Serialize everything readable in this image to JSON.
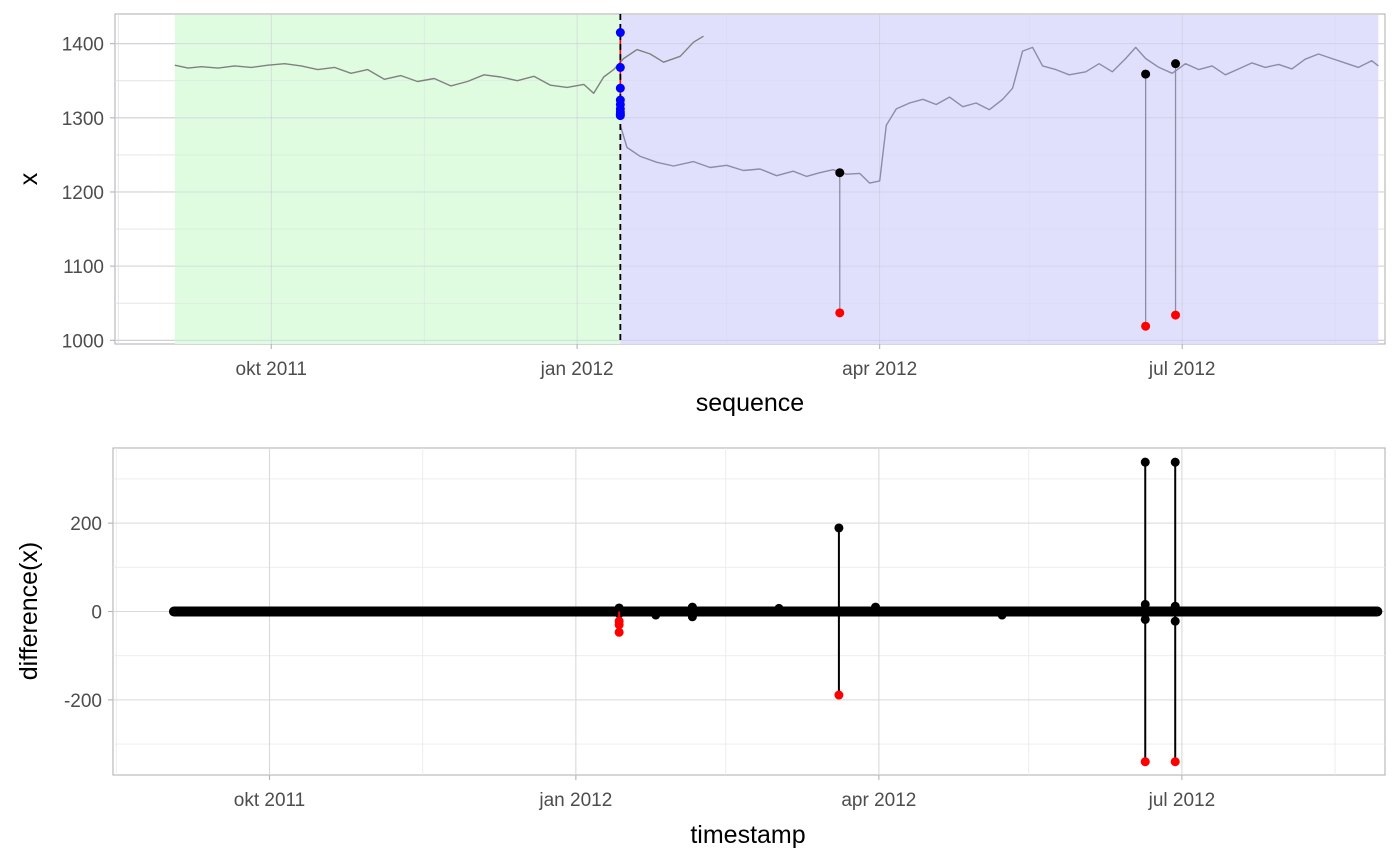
{
  "chart_data": [
    {
      "type": "line",
      "xlabel": "sequence",
      "ylabel": "x",
      "xlim": [
        "2011-08-15",
        "2012-08-31"
      ],
      "ylim": [
        995,
        1440
      ],
      "x_ticks": [
        {
          "label": "okt 2011",
          "date": "2011-10-01"
        },
        {
          "label": "jan 2012",
          "date": "2012-01-01"
        },
        {
          "label": "apr 2012",
          "date": "2012-04-01"
        },
        {
          "label": "jul 2012",
          "date": "2012-07-01"
        }
      ],
      "x_minor_ticks": [
        "2011-08-16",
        "2011-11-16",
        "2012-02-15",
        "2012-05-16",
        "2012-08-16"
      ],
      "y_ticks": [
        1000,
        1100,
        1200,
        1300,
        1400
      ],
      "y_minor_ticks": [
        1050,
        1150,
        1250,
        1350
      ],
      "grid": true,
      "regions": [
        {
          "start": "2011-09-02",
          "end": "2012-01-14",
          "color": "#e0fce0"
        },
        {
          "start": "2012-01-14",
          "end": "2012-08-29",
          "color": "#e0e0fc"
        }
      ],
      "changepoint": {
        "date": "2012-01-14",
        "color": "#000000",
        "style": "dashed"
      },
      "series": [
        {
          "color": "#808080",
          "points": [
            [
              "2011-09-02",
              1371
            ],
            [
              "2011-09-06",
              1367
            ],
            [
              "2011-09-10",
              1369
            ],
            [
              "2011-09-15",
              1367
            ],
            [
              "2011-09-20",
              1370
            ],
            [
              "2011-09-25",
              1368
            ],
            [
              "2011-09-30",
              1371
            ],
            [
              "2011-10-05",
              1373
            ],
            [
              "2011-10-10",
              1370
            ],
            [
              "2011-10-15",
              1365
            ],
            [
              "2011-10-20",
              1368
            ],
            [
              "2011-10-25",
              1360
            ],
            [
              "2011-10-30",
              1365
            ],
            [
              "2011-11-04",
              1352
            ],
            [
              "2011-11-09",
              1357
            ],
            [
              "2011-11-14",
              1349
            ],
            [
              "2011-11-19",
              1353
            ],
            [
              "2011-11-24",
              1343
            ],
            [
              "2011-11-29",
              1349
            ],
            [
              "2011-12-04",
              1358
            ],
            [
              "2011-12-09",
              1355
            ],
            [
              "2011-12-14",
              1350
            ],
            [
              "2011-12-19",
              1356
            ],
            [
              "2011-12-24",
              1344
            ],
            [
              "2011-12-29",
              1341
            ],
            [
              "2012-01-03",
              1345
            ],
            [
              "2012-01-06",
              1333
            ],
            [
              "2012-01-09",
              1355
            ],
            [
              "2012-01-12",
              1365
            ],
            [
              "2012-01-15",
              1380
            ],
            [
              "2012-01-19",
              1392
            ],
            [
              "2012-01-23",
              1386
            ],
            [
              "2012-01-27",
              1375
            ],
            [
              "2012-02-01",
              1383
            ],
            [
              "2012-02-05",
              1402
            ],
            [
              "2012-02-08",
              1410
            ]
          ]
        },
        {
          "color": "#8c8ca6",
          "points": [
            [
              "2012-01-14",
              1290
            ],
            [
              "2012-01-16",
              1260
            ],
            [
              "2012-01-20",
              1248
            ],
            [
              "2012-01-25",
              1240
            ],
            [
              "2012-01-30",
              1235
            ],
            [
              "2012-02-05",
              1241
            ],
            [
              "2012-02-10",
              1233
            ],
            [
              "2012-02-15",
              1236
            ],
            [
              "2012-02-20",
              1229
            ],
            [
              "2012-02-25",
              1231
            ],
            [
              "2012-03-01",
              1222
            ],
            [
              "2012-03-06",
              1228
            ],
            [
              "2012-03-10",
              1221
            ],
            [
              "2012-03-14",
              1226
            ],
            [
              "2012-03-18",
              1230
            ],
            [
              "2012-03-22",
              1224
            ],
            [
              "2012-03-26",
              1225
            ],
            [
              "2012-03-29",
              1212
            ],
            [
              "2012-04-01",
              1215
            ],
            [
              "2012-04-03",
              1290
            ],
            [
              "2012-04-06",
              1312
            ],
            [
              "2012-04-10",
              1320
            ],
            [
              "2012-04-14",
              1325
            ],
            [
              "2012-04-18",
              1318
            ],
            [
              "2012-04-22",
              1328
            ],
            [
              "2012-04-26",
              1315
            ],
            [
              "2012-04-30",
              1320
            ],
            [
              "2012-05-04",
              1311
            ],
            [
              "2012-05-08",
              1325
            ],
            [
              "2012-05-11",
              1340
            ],
            [
              "2012-05-14",
              1390
            ],
            [
              "2012-05-17",
              1395
            ],
            [
              "2012-05-20",
              1370
            ],
            [
              "2012-05-24",
              1365
            ],
            [
              "2012-05-28",
              1358
            ],
            [
              "2012-06-02",
              1362
            ],
            [
              "2012-06-06",
              1373
            ],
            [
              "2012-06-10",
              1362
            ],
            [
              "2012-06-14",
              1380
            ],
            [
              "2012-06-17",
              1395
            ],
            [
              "2012-06-20",
              1380
            ],
            [
              "2012-06-24",
              1368
            ],
            [
              "2012-06-28",
              1360
            ],
            [
              "2012-07-02",
              1373
            ],
            [
              "2012-07-06",
              1365
            ],
            [
              "2012-07-10",
              1370
            ],
            [
              "2012-07-14",
              1358
            ],
            [
              "2012-07-18",
              1366
            ],
            [
              "2012-07-22",
              1374
            ],
            [
              "2012-07-26",
              1368
            ],
            [
              "2012-07-30",
              1372
            ],
            [
              "2012-08-03",
              1366
            ],
            [
              "2012-08-07",
              1379
            ],
            [
              "2012-08-11",
              1386
            ],
            [
              "2012-08-15",
              1380
            ],
            [
              "2012-08-19",
              1374
            ],
            [
              "2012-08-23",
              1368
            ],
            [
              "2012-08-27",
              1377
            ],
            [
              "2012-08-29",
              1370
            ]
          ]
        }
      ],
      "spikes": [
        {
          "date": "2012-03-20",
          "top": 1226,
          "bottom": 1037
        },
        {
          "date": "2012-06-20",
          "top": 1359,
          "bottom": 1019
        },
        {
          "date": "2012-06-29",
          "top": 1373,
          "bottom": 1034
        }
      ],
      "changepoint_points": {
        "date": "2012-01-14",
        "values": [
          1415,
          1368,
          1340,
          1324,
          1318,
          1312,
          1308,
          1305,
          1303
        ],
        "color": "#0000ff"
      },
      "changepoint_segment": {
        "from": 1303,
        "to": 1415,
        "color": "#ff0000"
      },
      "spike_top_color": "#000000",
      "spike_bottom_color": "#ff0000"
    },
    {
      "type": "line",
      "xlabel": "timestamp",
      "ylabel": "difference(x)",
      "xlim": [
        "2011-08-15",
        "2012-08-31"
      ],
      "ylim": [
        -370,
        370
      ],
      "x_ticks": [
        {
          "label": "okt 2011",
          "date": "2011-10-01"
        },
        {
          "label": "jan 2012",
          "date": "2012-01-01"
        },
        {
          "label": "apr 2012",
          "date": "2012-04-01"
        },
        {
          "label": "jul 2012",
          "date": "2012-07-01"
        }
      ],
      "x_minor_ticks": [
        "2011-08-16",
        "2011-11-16",
        "2012-02-15",
        "2012-05-16",
        "2012-08-16"
      ],
      "y_ticks": [
        -200,
        0,
        200
      ],
      "y_minor_ticks": [
        -300,
        -100,
        100,
        300
      ],
      "grid": true,
      "baseline": {
        "start": "2011-09-02",
        "end": "2012-08-29",
        "color": "#000000"
      },
      "spikes": [
        {
          "date": "2012-03-20",
          "top": 189,
          "bottom": -189
        },
        {
          "date": "2012-06-20",
          "top": 338,
          "bottom": -340
        },
        {
          "date": "2012-06-29",
          "top": 338,
          "bottom": -340
        }
      ],
      "small_deviations": [
        {
          "date": "2012-01-14",
          "values": [
            8,
            -5,
            6
          ]
        },
        {
          "date": "2012-01-25",
          "values": [
            -8
          ]
        },
        {
          "date": "2012-02-05",
          "values": [
            -12,
            10
          ]
        },
        {
          "date": "2012-03-02",
          "values": [
            7
          ]
        },
        {
          "date": "2012-03-31",
          "values": [
            10
          ]
        },
        {
          "date": "2012-05-08",
          "values": [
            -8
          ]
        },
        {
          "date": "2012-06-20",
          "values": [
            16,
            -18
          ]
        },
        {
          "date": "2012-06-29",
          "values": [
            -22,
            12
          ]
        }
      ],
      "negative_points": {
        "date": "2012-01-14",
        "values": [
          -22,
          -30,
          -47
        ],
        "color": "#ff0000"
      },
      "spike_top_color": "#000000",
      "spike_bottom_color": "#ff0000"
    }
  ]
}
